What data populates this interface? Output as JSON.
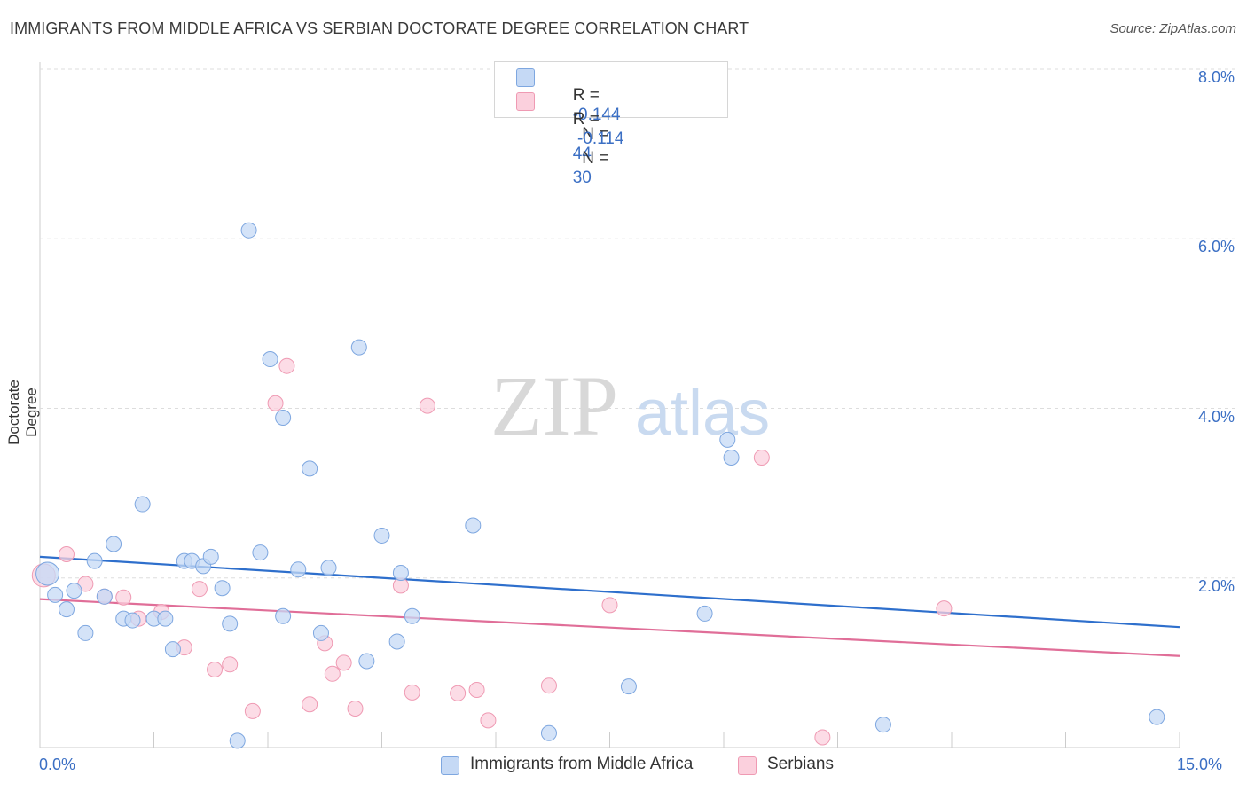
{
  "title": "IMMIGRANTS FROM MIDDLE AFRICA VS SERBIAN DOCTORATE DEGREE CORRELATION CHART",
  "source": "Source: ZipAtlas.com",
  "watermark": {
    "zip": "ZIP",
    "atlas": "atlas"
  },
  "legend": {
    "rows": [
      {
        "r_label": "R =",
        "r_value": "-0.144",
        "n_label": "N =",
        "n_value": "44"
      },
      {
        "r_label": "R =",
        "r_value": "-0.114",
        "n_label": "N =",
        "n_value": "30"
      }
    ]
  },
  "colors": {
    "blue_fill": "#c5d9f5",
    "blue_stroke": "#7ea7e0",
    "blue_line": "#2e6fcc",
    "pink_fill": "#fbd0dd",
    "pink_stroke": "#ef9ab3",
    "pink_line": "#e06e98",
    "grid": "#dddddd",
    "tick_text": "#3b6fc4"
  },
  "chart_data": {
    "type": "scatter",
    "title": "IMMIGRANTS FROM MIDDLE AFRICA VS SERBIAN DOCTORATE DEGREE CORRELATION CHART",
    "xlabel": "",
    "ylabel": "Doctorate Degree",
    "xlim": [
      0,
      15
    ],
    "ylim": [
      0,
      8.0
    ],
    "x_tick_labels": [
      "0.0%",
      "15.0%"
    ],
    "y_ticks": [
      2.0,
      4.0,
      6.0,
      8.0
    ],
    "y_tick_labels": [
      "2.0%",
      "4.0%",
      "6.0%",
      "8.0%"
    ],
    "series": [
      {
        "name": "Immigrants from Middle Africa",
        "color": "#7ea7e0",
        "trend": {
          "x": [
            0,
            15
          ],
          "y": [
            2.25,
            1.42
          ]
        },
        "points": [
          {
            "x": 0.1,
            "y": 2.05
          },
          {
            "x": 0.2,
            "y": 1.8
          },
          {
            "x": 0.35,
            "y": 1.63
          },
          {
            "x": 0.45,
            "y": 1.85
          },
          {
            "x": 0.6,
            "y": 1.35
          },
          {
            "x": 0.72,
            "y": 2.2
          },
          {
            "x": 0.85,
            "y": 1.78
          },
          {
            "x": 0.97,
            "y": 2.4
          },
          {
            "x": 1.1,
            "y": 1.52
          },
          {
            "x": 1.22,
            "y": 1.5
          },
          {
            "x": 1.35,
            "y": 2.87
          },
          {
            "x": 1.5,
            "y": 1.52
          },
          {
            "x": 1.65,
            "y": 1.52
          },
          {
            "x": 1.75,
            "y": 1.16
          },
          {
            "x": 1.9,
            "y": 2.2
          },
          {
            "x": 2.0,
            "y": 2.2
          },
          {
            "x": 2.15,
            "y": 2.14
          },
          {
            "x": 2.25,
            "y": 2.25
          },
          {
            "x": 2.4,
            "y": 1.88
          },
          {
            "x": 2.5,
            "y": 1.46
          },
          {
            "x": 2.6,
            "y": 0.08
          },
          {
            "x": 2.75,
            "y": 6.1
          },
          {
            "x": 2.9,
            "y": 2.3
          },
          {
            "x": 3.03,
            "y": 4.58
          },
          {
            "x": 3.2,
            "y": 1.55
          },
          {
            "x": 3.2,
            "y": 3.89
          },
          {
            "x": 3.4,
            "y": 2.1
          },
          {
            "x": 3.55,
            "y": 3.29
          },
          {
            "x": 3.7,
            "y": 1.35
          },
          {
            "x": 3.8,
            "y": 2.12
          },
          {
            "x": 4.2,
            "y": 4.72
          },
          {
            "x": 4.3,
            "y": 1.02
          },
          {
            "x": 4.5,
            "y": 2.5
          },
          {
            "x": 4.7,
            "y": 1.25
          },
          {
            "x": 4.75,
            "y": 2.06
          },
          {
            "x": 4.9,
            "y": 1.55
          },
          {
            "x": 5.7,
            "y": 2.62
          },
          {
            "x": 6.7,
            "y": 0.17
          },
          {
            "x": 7.75,
            "y": 0.72
          },
          {
            "x": 8.75,
            "y": 1.58
          },
          {
            "x": 9.05,
            "y": 3.63
          },
          {
            "x": 9.1,
            "y": 3.42
          },
          {
            "x": 11.1,
            "y": 0.27
          },
          {
            "x": 14.7,
            "y": 0.36
          }
        ]
      },
      {
        "name": "Serbians",
        "color": "#ef9ab3",
        "trend": {
          "x": [
            0,
            15
          ],
          "y": [
            1.75,
            1.08
          ]
        },
        "points": [
          {
            "x": 0.05,
            "y": 2.03
          },
          {
            "x": 0.35,
            "y": 2.28
          },
          {
            "x": 0.6,
            "y": 1.93
          },
          {
            "x": 0.85,
            "y": 1.78
          },
          {
            "x": 1.1,
            "y": 1.77
          },
          {
            "x": 1.3,
            "y": 1.52
          },
          {
            "x": 1.6,
            "y": 1.6
          },
          {
            "x": 1.9,
            "y": 1.18
          },
          {
            "x": 2.1,
            "y": 1.87
          },
          {
            "x": 2.3,
            "y": 0.92
          },
          {
            "x": 2.5,
            "y": 0.98
          },
          {
            "x": 2.8,
            "y": 0.43
          },
          {
            "x": 3.1,
            "y": 4.06
          },
          {
            "x": 3.25,
            "y": 4.5
          },
          {
            "x": 3.55,
            "y": 0.51
          },
          {
            "x": 3.75,
            "y": 1.23
          },
          {
            "x": 3.85,
            "y": 0.87
          },
          {
            "x": 4.0,
            "y": 1.0
          },
          {
            "x": 4.15,
            "y": 0.46
          },
          {
            "x": 4.75,
            "y": 1.91
          },
          {
            "x": 4.9,
            "y": 0.65
          },
          {
            "x": 5.1,
            "y": 4.03
          },
          {
            "x": 5.5,
            "y": 0.64
          },
          {
            "x": 5.75,
            "y": 0.68
          },
          {
            "x": 5.9,
            "y": 0.32
          },
          {
            "x": 6.7,
            "y": 0.73
          },
          {
            "x": 7.5,
            "y": 1.68
          },
          {
            "x": 9.5,
            "y": 3.42
          },
          {
            "x": 10.3,
            "y": 0.12
          },
          {
            "x": 11.9,
            "y": 1.64
          }
        ]
      }
    ]
  },
  "bottom_legend": {
    "items": [
      {
        "label": "Immigrants from Middle Africa"
      },
      {
        "label": "Serbians"
      }
    ]
  }
}
